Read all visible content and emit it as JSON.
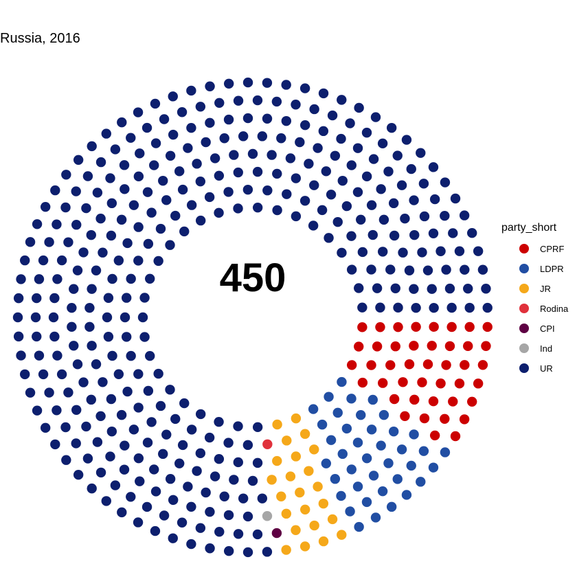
{
  "chart_data": {
    "type": "parliament",
    "title": "Russia, 2016",
    "total_label": "450",
    "legend_title": "party_short",
    "legend_position": "right",
    "series": [
      {
        "name": "CPRF",
        "seats": 42,
        "color": "#cc0000"
      },
      {
        "name": "LDPR",
        "seats": 39,
        "color": "#214ea3"
      },
      {
        "name": "JR",
        "seats": 23,
        "color": "#f5a81a"
      },
      {
        "name": "Rodina",
        "seats": 1,
        "color": "#e0313b"
      },
      {
        "name": "CPI",
        "seats": 1,
        "color": "#5e0043"
      },
      {
        "name": "Ind",
        "seats": 1,
        "color": "#a6a6a6"
      },
      {
        "name": "UR",
        "seats": 343,
        "color": "#0d1f6e"
      }
    ]
  }
}
